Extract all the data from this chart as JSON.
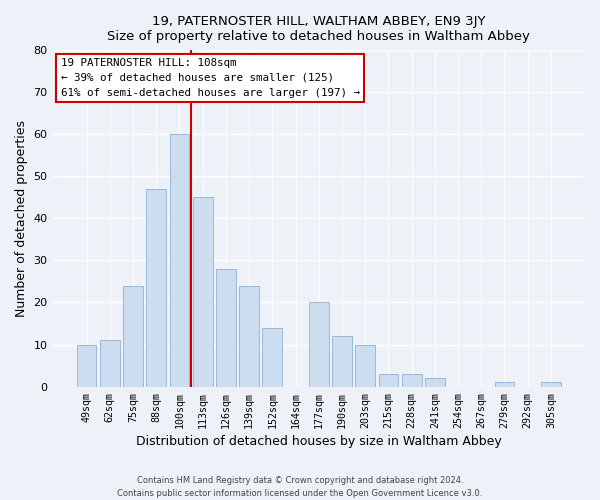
{
  "title1": "19, PATERNOSTER HILL, WALTHAM ABBEY, EN9 3JY",
  "title2": "Size of property relative to detached houses in Waltham Abbey",
  "xlabel": "Distribution of detached houses by size in Waltham Abbey",
  "ylabel": "Number of detached properties",
  "bar_labels": [
    "49sqm",
    "62sqm",
    "75sqm",
    "88sqm",
    "100sqm",
    "113sqm",
    "126sqm",
    "139sqm",
    "152sqm",
    "164sqm",
    "177sqm",
    "190sqm",
    "203sqm",
    "215sqm",
    "228sqm",
    "241sqm",
    "254sqm",
    "267sqm",
    "279sqm",
    "292sqm",
    "305sqm"
  ],
  "bar_values": [
    10,
    11,
    24,
    47,
    60,
    45,
    28,
    24,
    14,
    0,
    20,
    12,
    10,
    3,
    3,
    2,
    0,
    0,
    1,
    0,
    1
  ],
  "bar_color": "#cdddf0",
  "bar_edge_color": "#9ab8dc",
  "marker_label": "19 PATERNOSTER HILL: 108sqm",
  "annotation_line1": "← 39% of detached houses are smaller (125)",
  "annotation_line2": "61% of semi-detached houses are larger (197) →",
  "vline_color": "#cc0000",
  "annotation_box_edge": "#cc0000",
  "ylim": [
    0,
    80
  ],
  "yticks": [
    0,
    10,
    20,
    30,
    40,
    50,
    60,
    70,
    80
  ],
  "footnote1": "Contains HM Land Registry data © Crown copyright and database right 2024.",
  "footnote2": "Contains public sector information licensed under the Open Government Licence v3.0.",
  "bg_color": "#eef2f8",
  "plot_bg_color": "#eef2f8",
  "grid_color": "#ffffff",
  "vline_x_index": 4.5
}
